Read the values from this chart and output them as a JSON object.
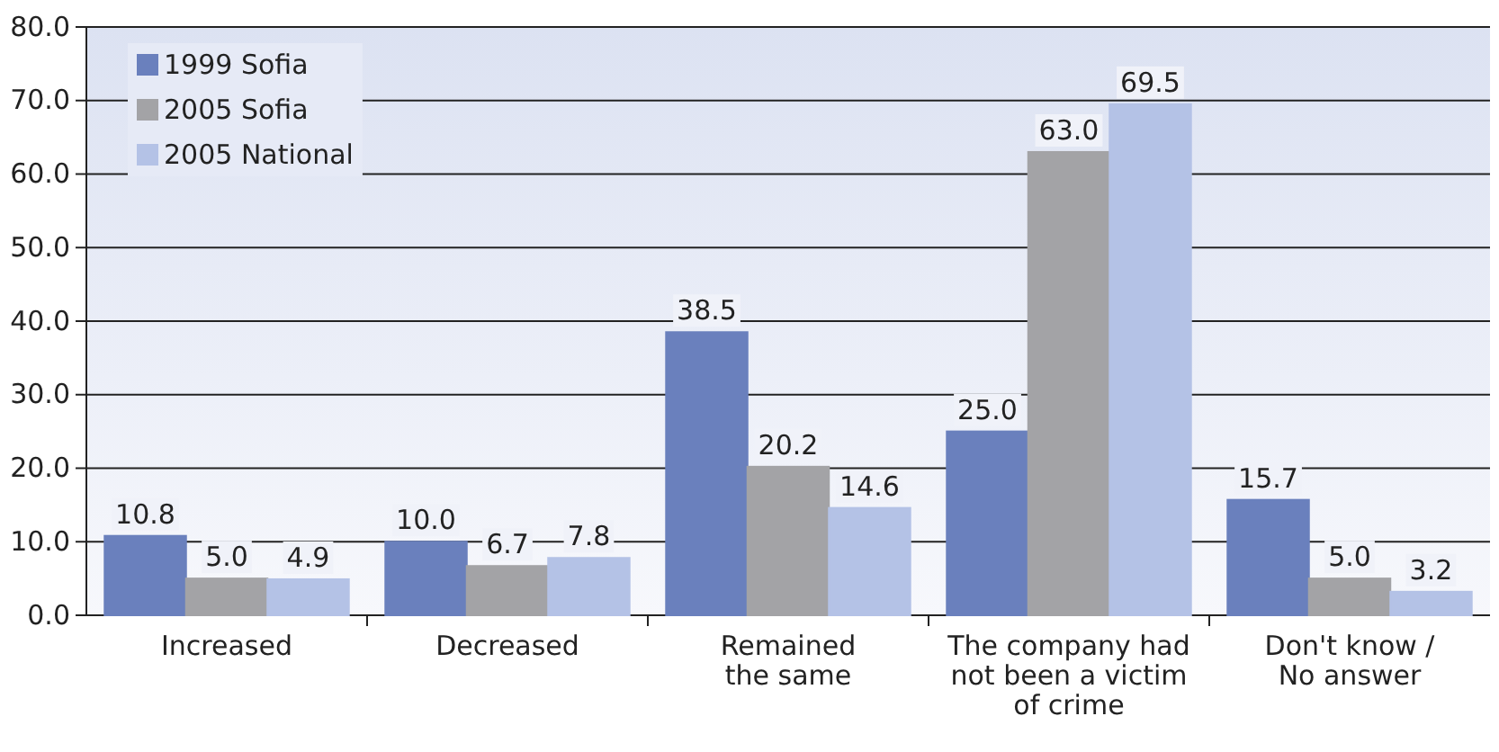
{
  "chart_data": {
    "type": "bar",
    "categories": [
      "Increased",
      "Decreased",
      "Remained\nthe same",
      "The company had\nnot been a victim\nof crime",
      "Don't know /\nNo answer"
    ],
    "series": [
      {
        "name": "1999 Sofia",
        "color": "#6a80bd",
        "values": [
          10.8,
          10.0,
          38.5,
          25.0,
          15.7
        ],
        "value_labels": [
          "10.8",
          "10.0",
          "38.5",
          "25.0",
          "15.7"
        ]
      },
      {
        "name": "2005 Sofia",
        "color": "#a3a3a6",
        "values": [
          5.0,
          6.7,
          20.2,
          63.0,
          5.0
        ],
        "value_labels": [
          "5.0",
          "6.7",
          "20.2",
          "63.0",
          "5.0"
        ]
      },
      {
        "name": "2005 National",
        "color": "#b4c2e6",
        "values": [
          4.9,
          7.8,
          14.6,
          69.5,
          3.2
        ],
        "value_labels": [
          "4.9",
          "7.8",
          "14.6",
          "69.5",
          "3.2"
        ]
      }
    ],
    "ylim": [
      0,
      80
    ],
    "yticks": [
      {
        "value": 0,
        "label": "0.0"
      },
      {
        "value": 10,
        "label": "10.0"
      },
      {
        "value": 20,
        "label": "20.0"
      },
      {
        "value": 30,
        "label": "30.0"
      },
      {
        "value": 40,
        "label": "40.0"
      },
      {
        "value": 50,
        "label": "50.0"
      },
      {
        "value": 60,
        "label": "60.0"
      },
      {
        "value": 70,
        "label": "70.0"
      },
      {
        "value": 80,
        "label": "80.0"
      }
    ],
    "grid": "y",
    "legend": "top left"
  }
}
